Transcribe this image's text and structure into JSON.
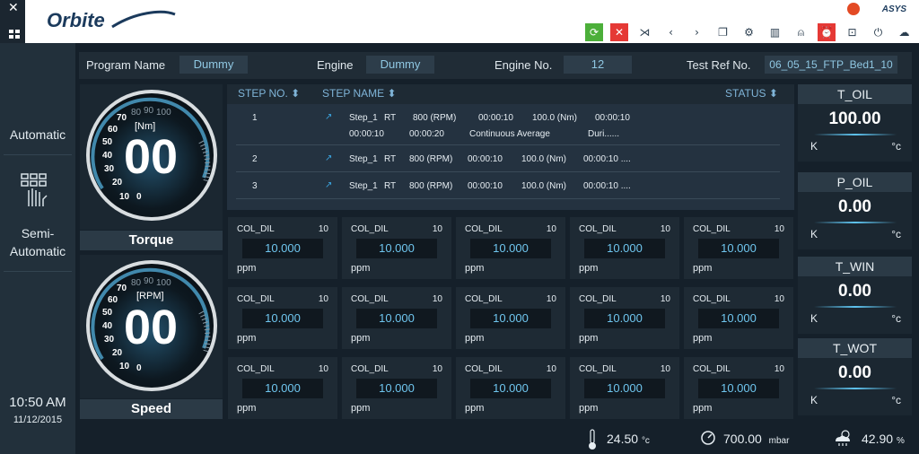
{
  "window": {
    "close_glyph": "✕"
  },
  "logo": {
    "text": "Orbite",
    "brand": "ASYS"
  },
  "toolbar": {
    "icons": [
      "refresh-icon",
      "stop-icon",
      "arrows-in-icon",
      "prev-icon",
      "next-icon",
      "windows-icon",
      "settings-icon",
      "columns-icon",
      "user-icon",
      "alarm-icon",
      "lock-icon",
      "power-icon",
      "cloud-icon"
    ],
    "glyphs": [
      "⟳",
      "✕",
      "⋊",
      "‹",
      "›",
      "❐",
      "⚙",
      "▥",
      "⍝",
      "⏰",
      "⊡",
      "⏻",
      "☁"
    ]
  },
  "sidebar": {
    "mode_auto": "Automatic",
    "mode_semi_1": "Semi-",
    "mode_semi_2": "Automatic",
    "time": "10:50 AM",
    "date": "11/12/2015"
  },
  "header": {
    "program_label": "Program Name",
    "program_value": "Dummy",
    "engine_label": "Engine",
    "engine_value": "Dummy",
    "engine_no_label": "Engine No.",
    "engine_no_value": "12",
    "test_ref_label": "Test Ref No.",
    "test_ref_value": "06_05_15_FTP_Bed1_10"
  },
  "gauges": {
    "torque": {
      "label": "Torque",
      "unit": "[Nm]",
      "value": "00",
      "ticks": [
        "10",
        "20",
        "30",
        "40",
        "50",
        "60",
        "70",
        "80",
        "90",
        "100"
      ],
      "zero": "0"
    },
    "speed": {
      "label": "Speed",
      "unit": "[RPM]",
      "value": "00",
      "ticks": [
        "10",
        "20",
        "30",
        "40",
        "50",
        "60",
        "70",
        "80",
        "90",
        "100"
      ],
      "zero": "0"
    }
  },
  "steps": {
    "headers": {
      "no": "STEP NO.",
      "name": "STEP NAME",
      "status": "STATUS",
      "sort": "⬍"
    },
    "rows": [
      {
        "no": "1",
        "line1": [
          "Step_1",
          "RT",
          "800 (RPM)",
          "00:00:10",
          "100.0 (Nm)",
          "00:00:10"
        ],
        "line2": [
          "00:00:10",
          "00:00:20",
          "Continuous Average",
          "Duri......"
        ]
      },
      {
        "no": "2",
        "line1": [
          "Step_1",
          "RT",
          "800 (RPM)",
          "00:00:10",
          "100.0 (Nm)",
          "00:00:10 ...."
        ]
      },
      {
        "no": "3",
        "line1": [
          "Step_1",
          "RT",
          "800 (RPM)",
          "00:00:10",
          "100.0 (Nm)",
          "00:00:10 ...."
        ]
      }
    ]
  },
  "tiles": [
    {
      "name": "COL_DIL",
      "count": "10",
      "value": "10.000",
      "unit": "ppm"
    },
    {
      "name": "COL_DIL",
      "count": "10",
      "value": "10.000",
      "unit": "ppm"
    },
    {
      "name": "COL_DIL",
      "count": "10",
      "value": "10.000",
      "unit": "ppm"
    },
    {
      "name": "COL_DIL",
      "count": "10",
      "value": "10.000",
      "unit": "ppm"
    },
    {
      "name": "COL_DIL",
      "count": "10",
      "value": "10.000",
      "unit": "ppm"
    },
    {
      "name": "COL_DIL",
      "count": "10",
      "value": "10.000",
      "unit": "ppm"
    },
    {
      "name": "COL_DIL",
      "count": "10",
      "value": "10.000",
      "unit": "ppm"
    },
    {
      "name": "COL_DIL",
      "count": "10",
      "value": "10.000",
      "unit": "ppm"
    },
    {
      "name": "COL_DIL",
      "count": "10",
      "value": "10.000",
      "unit": "ppm"
    },
    {
      "name": "COL_DIL",
      "count": "10",
      "value": "10.000",
      "unit": "ppm"
    },
    {
      "name": "COL_DIL",
      "count": "10",
      "value": "10.000",
      "unit": "ppm"
    },
    {
      "name": "COL_DIL",
      "count": "10",
      "value": "10.000",
      "unit": "ppm"
    },
    {
      "name": "COL_DIL",
      "count": "10",
      "value": "10.000",
      "unit": "ppm"
    },
    {
      "name": "COL_DIL",
      "count": "10",
      "value": "10.000",
      "unit": "ppm"
    },
    {
      "name": "COL_DIL",
      "count": "10",
      "value": "10.000",
      "unit": "ppm"
    }
  ],
  "right_panels": [
    {
      "title": "T_OIL",
      "value": "100.00",
      "left_unit": "K",
      "right_unit": "°c"
    },
    {
      "title": "P_OIL",
      "value": "0.00",
      "left_unit": "K",
      "right_unit": "°c"
    },
    {
      "title": "T_WIN",
      "value": "0.00",
      "left_unit": "K",
      "right_unit": "°c"
    },
    {
      "title": "T_WOT",
      "value": "0.00",
      "left_unit": "K",
      "right_unit": "°c"
    }
  ],
  "status": {
    "temp_value": "24.50",
    "temp_unit": "°c",
    "pressure_value": "700.00",
    "pressure_unit": "mbar",
    "humidity_value": "42.90",
    "humidity_unit": "%"
  }
}
